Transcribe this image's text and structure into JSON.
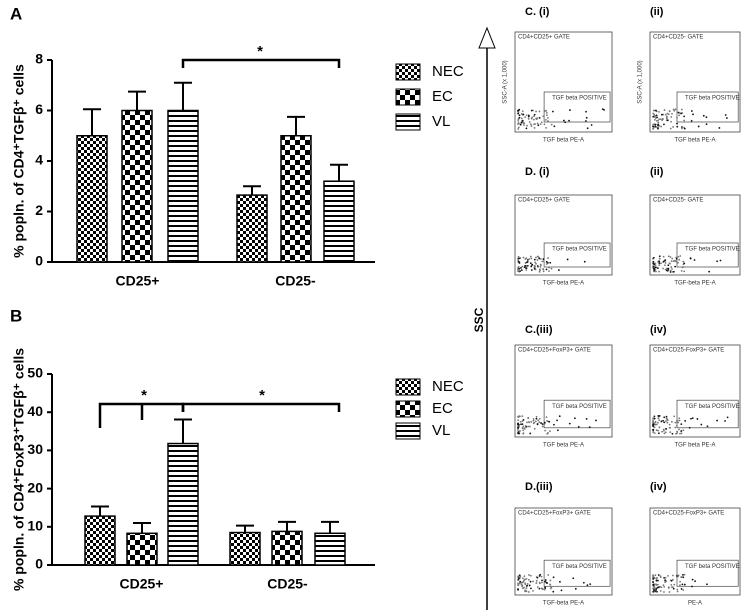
{
  "chart_data": [
    {
      "type": "bar",
      "panel": "A",
      "ylabel": "% popln. of CD4⁺TGFβ⁺ cells",
      "categories": [
        "CD25+",
        "CD25-"
      ],
      "ylim": [
        0,
        8
      ],
      "yticks": [
        0,
        2,
        4,
        6,
        8
      ],
      "series": [
        {
          "name": "NEC",
          "color": "#000000",
          "pattern": "checker-small",
          "values": [
            5.0,
            2.65
          ],
          "errors": [
            1.05,
            0.35
          ]
        },
        {
          "name": "EC",
          "color": "#000000",
          "pattern": "checker-large",
          "values": [
            6.0,
            5.0
          ],
          "errors": [
            0.75,
            0.75
          ]
        },
        {
          "name": "VL",
          "color": "#000000",
          "pattern": "stripes",
          "values": [
            6.0,
            3.2
          ],
          "errors": [
            1.1,
            0.65
          ]
        }
      ],
      "annotations": [
        {
          "text": "*"
        }
      ]
    },
    {
      "type": "bar",
      "panel": "B",
      "ylabel": "% popln. of CD4⁺FoxP3⁺TGFβ⁺ cells",
      "categories": [
        "CD25+",
        "CD25-"
      ],
      "ylim": [
        0,
        50
      ],
      "yticks": [
        0,
        10,
        20,
        30,
        40,
        50
      ],
      "series": [
        {
          "name": "NEC",
          "color": "#000000",
          "pattern": "checker-small",
          "values": [
            12.8,
            8.5
          ],
          "errors": [
            2.5,
            1.8
          ]
        },
        {
          "name": "EC",
          "color": "#000000",
          "pattern": "checker-large",
          "values": [
            8.3,
            8.8
          ],
          "errors": [
            2.7,
            2.5
          ]
        },
        {
          "name": "VL",
          "color": "#000000",
          "pattern": "stripes",
          "values": [
            31.8,
            8.3
          ],
          "errors": [
            6.3,
            3.0
          ]
        }
      ],
      "annotations": [
        {
          "text": "*"
        },
        {
          "text": "*"
        }
      ]
    }
  ],
  "flow": {
    "axis_label": "SSC",
    "panels": [
      {
        "label": "C. (i)",
        "gate": "CD4+CD25+ GATE",
        "positive": "TGF beta POSITIVE",
        "x_label": "TGF beta PE-A",
        "y_label": "SSC-A (x 1,000)"
      },
      {
        "label": "(ii)",
        "gate": "CD4+CD25- GATE",
        "positive": "TGF beta POSITIVE",
        "x_label": "TGF beta PE-A",
        "y_label": "SSC-A (x 1,000)"
      },
      {
        "label": "D. (i)",
        "gate": "CD4+CD25+ GATE",
        "positive": "TGF beta POSITIVE",
        "x_label": "TGF-beta PE-A"
      },
      {
        "label": "(ii)",
        "gate": "CD4+CD25- GATE",
        "positive": "TGF beta POSITIVE",
        "x_label": "TGF-beta PE-A"
      },
      {
        "label": "C.(iii)",
        "gate": "CD4+CD25+FoxP3+ GATE",
        "positive": "TGF beta POSITIVE",
        "x_label": "TGF beta PE-A"
      },
      {
        "label": "(iv)",
        "gate": "CD4+CD25-FoxP3+ GATE",
        "positive": "TGF beta POSITIVE",
        "x_label": "TGF beta PE-A"
      },
      {
        "label": "D.(iii)",
        "gate": "CD4+CD25+FoxP3+ GATE",
        "positive": "TGF beta POSITIVE",
        "x_label": "TGF-beta PE-A"
      },
      {
        "label": "(iv)",
        "gate": "CD4+CD25-FoxP3+ GATE",
        "positive": "TGF beta POSITIVE",
        "x_label": "PE-A"
      }
    ]
  }
}
